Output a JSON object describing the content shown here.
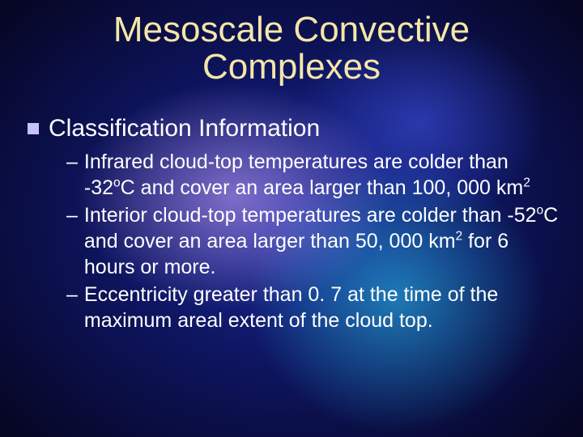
{
  "title_line1": "Mesoscale Convective",
  "title_line2": "Complexes",
  "heading": "Classification Information",
  "bullets": [
    {
      "pre": "Infrared cloud-top temperatures are colder than -32",
      "sup1": "o",
      "mid": "C and cover an area larger than 100, 000 km",
      "sup2": "2",
      "post": ""
    },
    {
      "pre": "Interior cloud-top temperatures are colder than -52",
      "sup1": "o",
      "mid": "C and cover an area larger than 50, 000 km",
      "sup2": "2",
      "post": " for 6 hours or more."
    },
    {
      "pre": "Eccentricity greater than 0. 7 at the time of the maximum areal extent of the cloud top.",
      "sup1": "",
      "mid": "",
      "sup2": "",
      "post": ""
    }
  ],
  "colors": {
    "title": "#f5e6a8",
    "body_text": "#ffffff",
    "bullet_square": "#c7c2ff"
  },
  "fonts": {
    "title_size_pt": 33,
    "heading_size_pt": 22,
    "body_size_pt": 19
  },
  "dash": "–"
}
